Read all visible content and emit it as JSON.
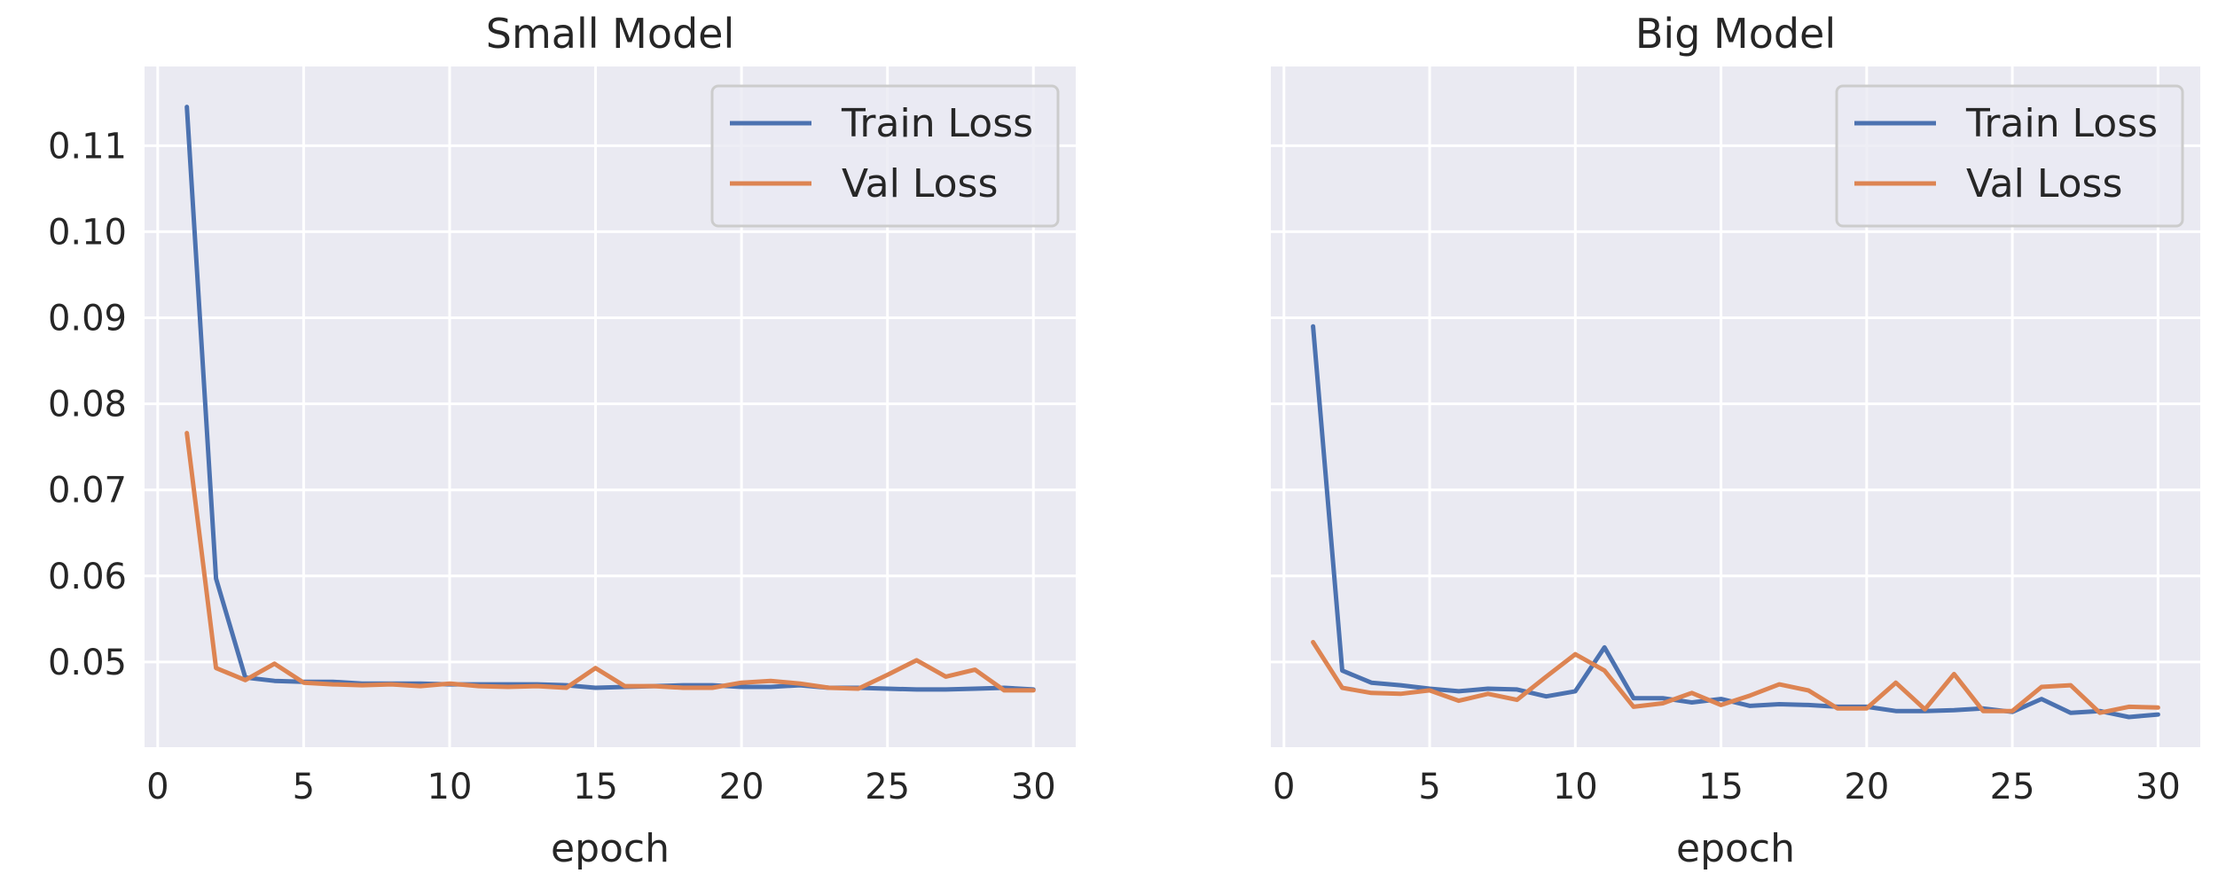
{
  "colors": {
    "panel_bg": "#eaeaf2",
    "grid": "#ffffff",
    "train": "#4c72b0",
    "val": "#dd8452",
    "text": "#262626",
    "legend_bg": "#eaeaf2",
    "legend_border": "#cccccc"
  },
  "chart_data": [
    {
      "type": "line",
      "title": "Small Model",
      "xlabel": "epoch",
      "ylabel": "",
      "xlim": [
        -0.45,
        31.45
      ],
      "ylim": [
        0.0401,
        0.1192
      ],
      "xticks": [
        0,
        5,
        10,
        15,
        20,
        25,
        30
      ],
      "xtick_labels": [
        "0",
        "5",
        "10",
        "15",
        "20",
        "25",
        "30"
      ],
      "yticks": [
        0.05,
        0.06,
        0.07,
        0.08,
        0.09,
        0.1,
        0.11
      ],
      "ytick_labels": [
        "0.05",
        "0.06",
        "0.07",
        "0.08",
        "0.09",
        "0.10",
        "0.11"
      ],
      "grid": true,
      "legend_position": "top-right",
      "x": [
        1,
        2,
        3,
        4,
        5,
        6,
        7,
        8,
        9,
        10,
        11,
        12,
        13,
        14,
        15,
        16,
        17,
        18,
        19,
        20,
        21,
        22,
        23,
        24,
        25,
        26,
        27,
        28,
        29,
        30
      ],
      "series": [
        {
          "name": "Train Loss",
          "color_key": "train",
          "values": [
            0.1145,
            0.0597,
            0.0482,
            0.0478,
            0.0477,
            0.0477,
            0.0475,
            0.0475,
            0.0475,
            0.0474,
            0.0474,
            0.0474,
            0.0474,
            0.0473,
            0.047,
            0.0471,
            0.0472,
            0.0473,
            0.0473,
            0.0471,
            0.0471,
            0.0473,
            0.047,
            0.047,
            0.0469,
            0.0468,
            0.0468,
            0.0469,
            0.047,
            0.0468
          ]
        },
        {
          "name": "Val Loss",
          "color_key": "val",
          "values": [
            0.0766,
            0.0493,
            0.0479,
            0.0498,
            0.0476,
            0.0474,
            0.0473,
            0.0474,
            0.0472,
            0.0475,
            0.0472,
            0.0471,
            0.0472,
            0.047,
            0.0493,
            0.0472,
            0.0472,
            0.047,
            0.047,
            0.0476,
            0.0478,
            0.0475,
            0.047,
            0.0469,
            0.0485,
            0.0502,
            0.0483,
            0.0491,
            0.0467,
            0.0467
          ]
        }
      ]
    },
    {
      "type": "line",
      "title": "Big Model",
      "xlabel": "epoch",
      "ylabel": "",
      "xlim": [
        -0.45,
        31.45
      ],
      "ylim": [
        0.0401,
        0.1192
      ],
      "xticks": [
        0,
        5,
        10,
        15,
        20,
        25,
        30
      ],
      "xtick_labels": [
        "0",
        "5",
        "10",
        "15",
        "20",
        "25",
        "30"
      ],
      "yticks": [
        0.05,
        0.06,
        0.07,
        0.08,
        0.09,
        0.1,
        0.11
      ],
      "ytick_labels": [],
      "grid": true,
      "legend_position": "top-right",
      "x": [
        1,
        2,
        3,
        4,
        5,
        6,
        7,
        8,
        9,
        10,
        11,
        12,
        13,
        14,
        15,
        16,
        17,
        18,
        19,
        20,
        21,
        22,
        23,
        24,
        25,
        26,
        27,
        28,
        29,
        30
      ],
      "series": [
        {
          "name": "Train Loss",
          "color_key": "train",
          "values": [
            0.089,
            0.049,
            0.0476,
            0.0473,
            0.0469,
            0.0466,
            0.0469,
            0.0468,
            0.046,
            0.0466,
            0.0517,
            0.0458,
            0.0458,
            0.0453,
            0.0457,
            0.0449,
            0.0451,
            0.045,
            0.0448,
            0.0448,
            0.0443,
            0.0443,
            0.0444,
            0.0446,
            0.0442,
            0.0457,
            0.0441,
            0.0443,
            0.0436,
            0.0439
          ]
        },
        {
          "name": "Val Loss",
          "color_key": "val",
          "values": [
            0.0523,
            0.047,
            0.0464,
            0.0463,
            0.0467,
            0.0455,
            0.0463,
            0.0456,
            0.0483,
            0.0509,
            0.049,
            0.0448,
            0.0452,
            0.0464,
            0.045,
            0.0461,
            0.0474,
            0.0467,
            0.0446,
            0.0446,
            0.0476,
            0.0445,
            0.0486,
            0.0443,
            0.0443,
            0.0471,
            0.0473,
            0.0441,
            0.0448,
            0.0447
          ]
        }
      ]
    }
  ]
}
